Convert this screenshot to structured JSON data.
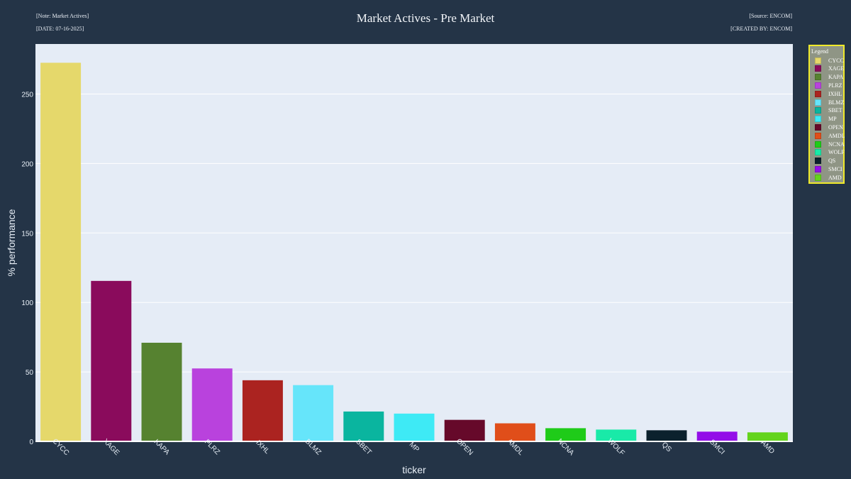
{
  "header": {
    "note": "[Note: Market Actives]",
    "date": "[DATE: 07-16-2025]",
    "source": "[Source: ENCOM]",
    "created_by": "[CREATED BY: ENCOM]"
  },
  "legend": {
    "title": "Legend"
  },
  "colors": {
    "page_bg": "#243447",
    "plot_bg": "#e5ecf6",
    "legend_border": "#f0ea2a"
  },
  "chart_data": {
    "type": "bar",
    "title": "Market Actives - Pre Market",
    "xlabel": "ticker",
    "ylabel": "% performance",
    "ylim": [
      0,
      286
    ],
    "yticks": [
      0,
      50,
      100,
      150,
      200,
      250
    ],
    "grid": true,
    "legend_position": "right",
    "categories": [
      "CYCC",
      "XAGE",
      "KAPA",
      "PLRZ",
      "IXHL",
      "BLMZ",
      "SBET",
      "MP",
      "OPEN",
      "AMDL",
      "NCNA",
      "WOLF",
      "QS",
      "SMCI",
      "AMD"
    ],
    "values": [
      272.5,
      115.5,
      71,
      52.5,
      44,
      40.5,
      21.5,
      20,
      15.5,
      13,
      9.5,
      8.5,
      8,
      7,
      6.5
    ],
    "bar_colors": [
      "#e5d86b",
      "#8a0b5c",
      "#568230",
      "#b942dd",
      "#ab2320",
      "#66e5fa",
      "#0ab59f",
      "#3eeaf5",
      "#66092a",
      "#e04e1a",
      "#1fcb19",
      "#19eaa8",
      "#0b212d",
      "#930ee8",
      "#63d41c"
    ]
  }
}
